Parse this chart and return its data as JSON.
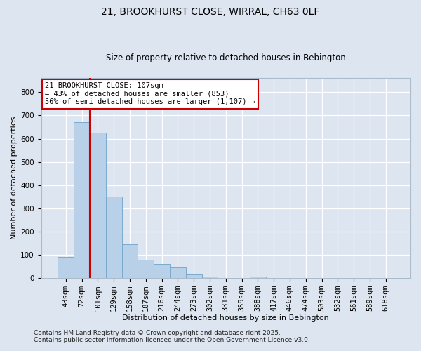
{
  "title": "21, BROOKHURST CLOSE, WIRRAL, CH63 0LF",
  "subtitle": "Size of property relative to detached houses in Bebington",
  "xlabel": "Distribution of detached houses by size in Bebington",
  "ylabel": "Number of detached properties",
  "categories": [
    "43sqm",
    "72sqm",
    "101sqm",
    "129sqm",
    "158sqm",
    "187sqm",
    "216sqm",
    "244sqm",
    "273sqm",
    "302sqm",
    "331sqm",
    "359sqm",
    "388sqm",
    "417sqm",
    "446sqm",
    "474sqm",
    "503sqm",
    "532sqm",
    "561sqm",
    "589sqm",
    "618sqm"
  ],
  "values": [
    90,
    670,
    625,
    350,
    145,
    80,
    60,
    45,
    15,
    5,
    0,
    0,
    5,
    0,
    0,
    0,
    0,
    0,
    0,
    0,
    0
  ],
  "bar_color": "#b8d0e8",
  "bar_edge_color": "#7aaacf",
  "property_line_x": 1.5,
  "property_line_color": "#cc0000",
  "annotation_text": "21 BROOKHURST CLOSE: 107sqm\n← 43% of detached houses are smaller (853)\n56% of semi-detached houses are larger (1,107) →",
  "annotation_box_facecolor": "#ffffff",
  "annotation_box_edgecolor": "#cc0000",
  "background_color": "#dde5f0",
  "plot_background_color": "#dde5f0",
  "footer_line1": "Contains HM Land Registry data © Crown copyright and database right 2025.",
  "footer_line2": "Contains public sector information licensed under the Open Government Licence v3.0.",
  "ylim": [
    0,
    860
  ],
  "yticks": [
    0,
    100,
    200,
    300,
    400,
    500,
    600,
    700,
    800
  ],
  "grid_color": "#c8d4e4",
  "spine_color": "#aabbcc",
  "title_fontsize": 10,
  "subtitle_fontsize": 8.5,
  "tick_fontsize": 7.5,
  "xlabel_fontsize": 8,
  "ylabel_fontsize": 8
}
